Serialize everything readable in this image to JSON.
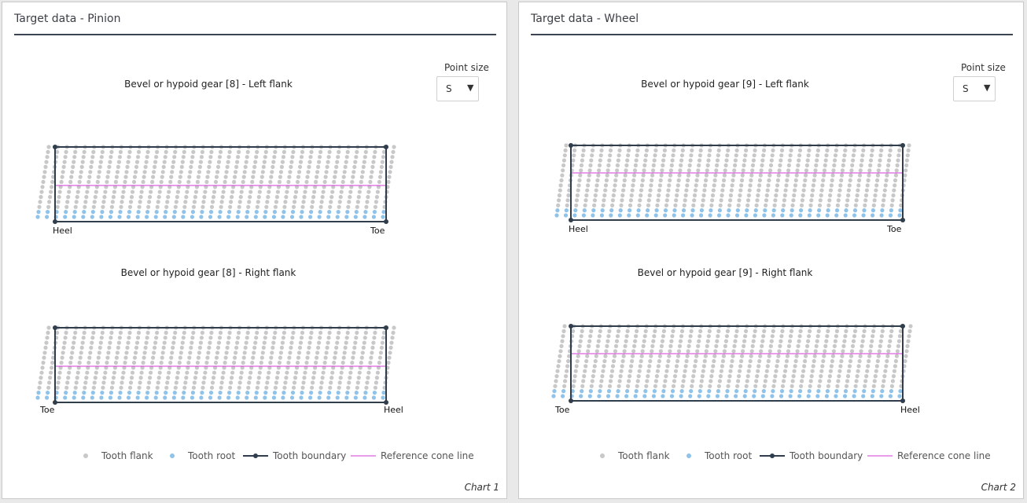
{
  "colors": {
    "tooth_flank": "#c8c8c8",
    "tooth_root": "#8fc3ea",
    "tooth_boundary": "#2f3d4c",
    "reference_cone_line": "#d43ad8"
  },
  "panels": [
    {
      "title": "Target data - Pinion",
      "point_size": {
        "label": "Point size",
        "value": "S"
      },
      "legend": {
        "tooth_flank": "Tooth flank",
        "tooth_root": "Tooth root",
        "tooth_boundary": "Tooth boundary",
        "reference_cone_line": "Reference cone line"
      },
      "chart_number": "Chart 1",
      "charts": [
        {
          "title": "Bevel or hypoid gear [8] - Left flank",
          "left_label": "Heel",
          "right_label": "Toe"
        },
        {
          "title": "Bevel or hypoid gear [8] - Right flank",
          "left_label": "Toe",
          "right_label": "Heel"
        }
      ]
    },
    {
      "title": "Target data - Wheel",
      "point_size": {
        "label": "Point size",
        "value": "S"
      },
      "legend": {
        "tooth_flank": "Tooth flank",
        "tooth_root": "Tooth root",
        "tooth_boundary": "Tooth boundary",
        "reference_cone_line": "Reference cone line"
      },
      "chart_number": "Chart 2",
      "charts": [
        {
          "title": "Bevel or hypoid gear [9] - Left flank",
          "left_label": "Heel",
          "right_label": "Toe"
        },
        {
          "title": "Bevel or hypoid gear [9] - Right flank",
          "left_label": "Toe",
          "right_label": "Heel"
        }
      ]
    }
  ]
}
